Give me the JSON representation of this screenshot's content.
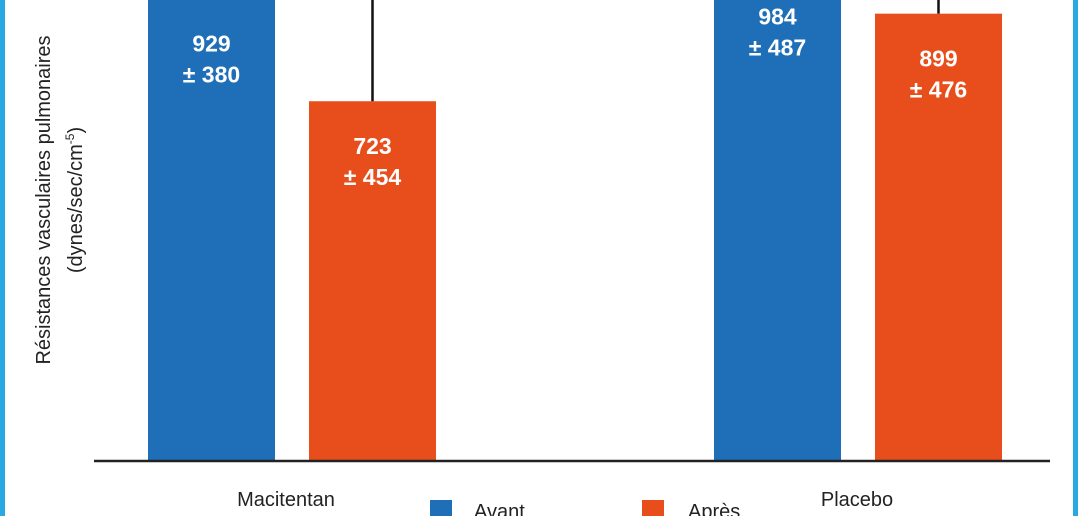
{
  "chart_data": {
    "type": "bar",
    "ylabel_line1": "Résistances vasculaires pulmonaires",
    "ylabel_line2": "(dynes/sec/cm",
    "ylabel_sup": "-5",
    "ylabel_close": ")",
    "categories": [
      "Macitentan",
      "Placebo"
    ],
    "series": [
      {
        "name": "Avant",
        "color": "#1f6fb8",
        "values": [
          929,
          984
        ],
        "errors": [
          380,
          487
        ],
        "labels": [
          "929",
          "984"
        ],
        "error_labels": [
          "± 380",
          "± 487"
        ]
      },
      {
        "name": "Après",
        "color": "#e84e1b",
        "values": [
          723,
          899
        ],
        "errors": [
          454,
          476
        ],
        "labels": [
          "723",
          "899"
        ],
        "error_labels": [
          "± 454",
          "± 476"
        ]
      }
    ],
    "legend_position": "bottom-center",
    "grid": false
  },
  "colors": {
    "accent_border": "#29a9e1",
    "bar_avant": "#1f6fb8",
    "bar_apres": "#e84e1b"
  }
}
